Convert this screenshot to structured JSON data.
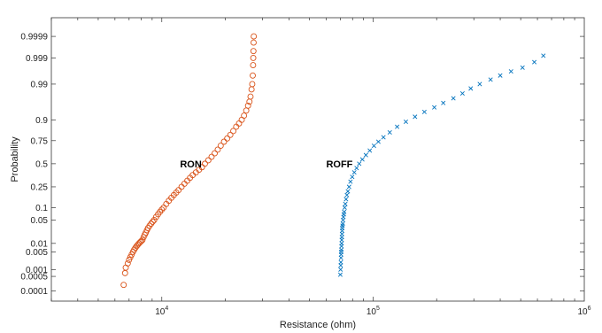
{
  "chart_data": {
    "type": "scatter",
    "title": "",
    "xlabel": "Resistance (ohm)",
    "ylabel": "Probability",
    "x_scale": "log",
    "y_scale": "normal-probability",
    "xlim": [
      3000,
      1000000
    ],
    "ylim": [
      3e-05,
      0.99999
    ],
    "x_major_ticks": [
      {
        "value": 10000,
        "base": "10",
        "exp": "4"
      },
      {
        "value": 100000,
        "base": "10",
        "exp": "5"
      },
      {
        "value": 1000000,
        "base": "10",
        "exp": "6"
      }
    ],
    "y_ticks": [
      {
        "value": 0.0001,
        "label": "0.0001"
      },
      {
        "value": 0.0005,
        "label": "0.0005"
      },
      {
        "value": 0.001,
        "label": "0.001"
      },
      {
        "value": 0.005,
        "label": "0.005"
      },
      {
        "value": 0.01,
        "label": "0.01"
      },
      {
        "value": 0.05,
        "label": "0.05"
      },
      {
        "value": 0.1,
        "label": "0.1"
      },
      {
        "value": 0.25,
        "label": "0.25"
      },
      {
        "value": 0.5,
        "label": "0.5"
      },
      {
        "value": 0.75,
        "label": "0.75"
      },
      {
        "value": 0.9,
        "label": "0.9"
      },
      {
        "value": 0.99,
        "label": "0.99"
      },
      {
        "value": 0.999,
        "label": "0.999"
      },
      {
        "value": 0.9999,
        "label": "0.9999"
      }
    ],
    "grid": false,
    "series": [
      {
        "name": "RON",
        "marker": "circle",
        "color": "#d95319",
        "label_at": {
          "x": 12200,
          "p": 0.5
        },
        "points": [
          [
            6600,
            0.0002
          ],
          [
            6700,
            0.0007
          ],
          [
            6750,
            0.0012
          ],
          [
            6900,
            0.0018
          ],
          [
            7000,
            0.0025
          ],
          [
            7100,
            0.0032
          ],
          [
            7200,
            0.004
          ],
          [
            7300,
            0.005
          ],
          [
            7400,
            0.006
          ],
          [
            7500,
            0.007
          ],
          [
            7600,
            0.008
          ],
          [
            7700,
            0.009
          ],
          [
            7800,
            0.01
          ],
          [
            7900,
            0.011
          ],
          [
            8000,
            0.012
          ],
          [
            8100,
            0.013
          ],
          [
            8200,
            0.016
          ],
          [
            8300,
            0.019
          ],
          [
            8400,
            0.022
          ],
          [
            8500,
            0.026
          ],
          [
            8600,
            0.03
          ],
          [
            8750,
            0.035
          ],
          [
            8900,
            0.04
          ],
          [
            9050,
            0.045
          ],
          [
            9200,
            0.05
          ],
          [
            9400,
            0.06
          ],
          [
            9600,
            0.07
          ],
          [
            9800,
            0.08
          ],
          [
            10000,
            0.09
          ],
          [
            10200,
            0.1
          ],
          [
            10500,
            0.12
          ],
          [
            10800,
            0.14
          ],
          [
            11100,
            0.16
          ],
          [
            11400,
            0.18
          ],
          [
            11700,
            0.2
          ],
          [
            12000,
            0.22
          ],
          [
            12400,
            0.25
          ],
          [
            12800,
            0.28
          ],
          [
            13200,
            0.31
          ],
          [
            13600,
            0.34
          ],
          [
            14000,
            0.37
          ],
          [
            14500,
            0.4
          ],
          [
            15000,
            0.43
          ],
          [
            15500,
            0.46
          ],
          [
            16000,
            0.5
          ],
          [
            16600,
            0.54
          ],
          [
            17200,
            0.58
          ],
          [
            17800,
            0.62
          ],
          [
            18400,
            0.66
          ],
          [
            19000,
            0.7
          ],
          [
            19700,
            0.74
          ],
          [
            20400,
            0.77
          ],
          [
            21100,
            0.8
          ],
          [
            21800,
            0.83
          ],
          [
            22500,
            0.86
          ],
          [
            23200,
            0.88
          ],
          [
            23900,
            0.9
          ],
          [
            24500,
            0.92
          ],
          [
            25100,
            0.94
          ],
          [
            25600,
            0.955
          ],
          [
            26000,
            0.965
          ],
          [
            26300,
            0.975
          ],
          [
            26600,
            0.985
          ],
          [
            26800,
            0.99
          ],
          [
            26950,
            0.995
          ],
          [
            27050,
            0.998
          ],
          [
            27100,
            0.999
          ],
          [
            27150,
            0.9995
          ],
          [
            27200,
            0.9998
          ],
          [
            27250,
            0.9999
          ]
        ]
      },
      {
        "name": "ROFF",
        "marker": "x",
        "color": "#0072bd",
        "label_at": {
          "x": 60000,
          "p": 0.5
        },
        "points": [
          [
            70000,
            0.0006
          ],
          [
            70200,
            0.001
          ],
          [
            70300,
            0.0015
          ],
          [
            70400,
            0.002
          ],
          [
            70500,
            0.003
          ],
          [
            70600,
            0.004
          ],
          [
            70700,
            0.005
          ],
          [
            70800,
            0.006
          ],
          [
            70900,
            0.008
          ],
          [
            71000,
            0.01
          ],
          [
            71100,
            0.013
          ],
          [
            71200,
            0.016
          ],
          [
            71300,
            0.02
          ],
          [
            71400,
            0.025
          ],
          [
            71500,
            0.03
          ],
          [
            71700,
            0.035
          ],
          [
            71900,
            0.04
          ],
          [
            72100,
            0.05
          ],
          [
            72400,
            0.06
          ],
          [
            72700,
            0.07
          ],
          [
            73000,
            0.08
          ],
          [
            73400,
            0.1
          ],
          [
            73900,
            0.12
          ],
          [
            74500,
            0.15
          ],
          [
            75200,
            0.18
          ],
          [
            76000,
            0.21
          ],
          [
            77000,
            0.25
          ],
          [
            78200,
            0.3
          ],
          [
            79700,
            0.35
          ],
          [
            81500,
            0.4
          ],
          [
            83600,
            0.45
          ],
          [
            86000,
            0.5
          ],
          [
            89000,
            0.55
          ],
          [
            92500,
            0.6
          ],
          [
            96500,
            0.65
          ],
          [
            101000,
            0.7
          ],
          [
            106000,
            0.74
          ],
          [
            112000,
            0.78
          ],
          [
            120000,
            0.82
          ],
          [
            130000,
            0.86
          ],
          [
            143000,
            0.89
          ],
          [
            158000,
            0.915
          ],
          [
            175000,
            0.935
          ],
          [
            195000,
            0.95
          ],
          [
            215000,
            0.962
          ],
          [
            240000,
            0.972
          ],
          [
            265000,
            0.98
          ],
          [
            290000,
            0.986
          ],
          [
            320000,
            0.99
          ],
          [
            360000,
            0.993
          ],
          [
            400000,
            0.995
          ],
          [
            450000,
            0.9965
          ],
          [
            510000,
            0.9975
          ],
          [
            580000,
            0.9985
          ],
          [
            640000,
            0.9992
          ]
        ]
      }
    ]
  }
}
